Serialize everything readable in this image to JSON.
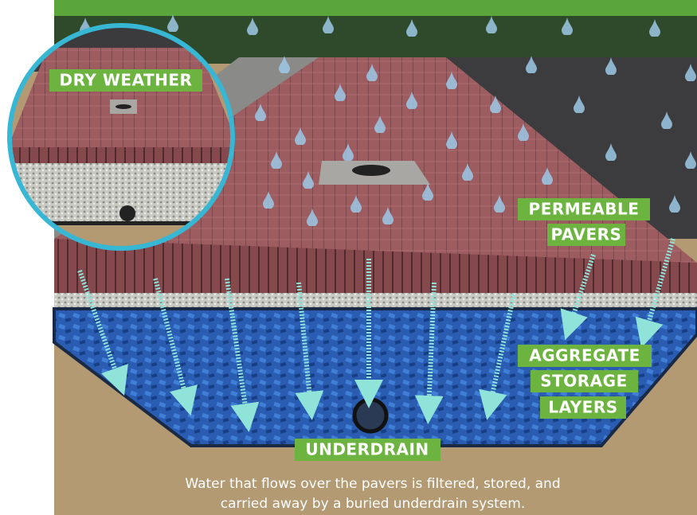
{
  "labels": {
    "dry_weather": "DRY WEATHER",
    "permeable_pavers": [
      "PERMEABLE",
      "PAVERS"
    ],
    "aggregate_storage_layers": [
      "AGGREGATE",
      "STORAGE",
      "LAYERS"
    ],
    "underdrain": "UNDERDRAIN"
  },
  "caption": [
    "Water that flows over the pavers is filtered, stored, and",
    "carried away by a buried underdrain system."
  ]
}
